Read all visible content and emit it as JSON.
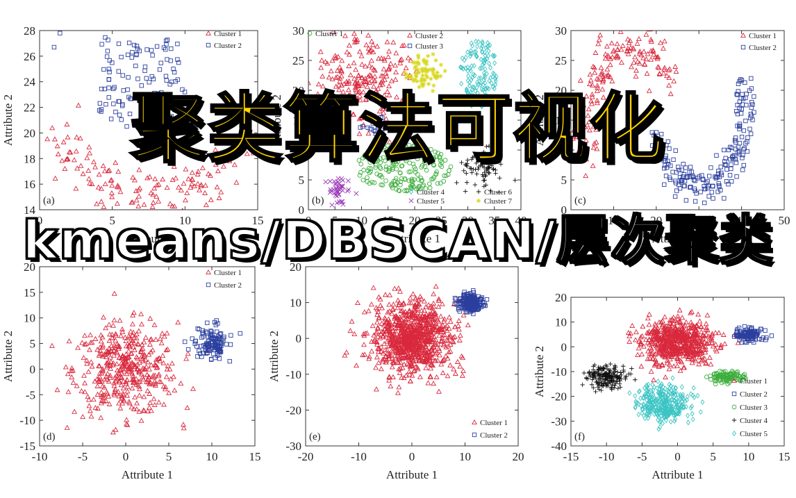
{
  "overlay": {
    "title": "聚类算法可视化",
    "subtitle": "kmeans/DBSCAN/层次聚类"
  },
  "colors": {
    "red": "#d9283c",
    "blue": "#2b3f9e",
    "green": "#3dae3d",
    "black": "#111111",
    "cyan": "#3cc4c4",
    "yellow": "#d8d820",
    "purple": "#9a39b8"
  },
  "chart_data": [
    {
      "id": "a",
      "label": "(a)",
      "type": "scatter",
      "xlim": [
        0,
        15
      ],
      "ylim": [
        14,
        28
      ],
      "xticks": [
        0,
        5,
        10,
        15
      ],
      "yticks": [
        14,
        16,
        18,
        20,
        22,
        24,
        26,
        28
      ],
      "xlabel": "Attribute 1",
      "ylabel": "Attribute 2",
      "legend": [
        {
          "name": "Cluster 1",
          "marker": "triangle",
          "color": "red"
        },
        {
          "name": "Cluster 2",
          "marker": "square",
          "color": "blue"
        }
      ],
      "series": [
        {
          "name": "Cluster 1",
          "marker": "triangle",
          "color": "red",
          "shape": "arc",
          "cx": 7.5,
          "cy": 22.5,
          "r": 6.5,
          "ry": 7.2,
          "a0": 200,
          "a1": 340,
          "width": 1.2,
          "n": 140,
          "seed": 11
        },
        {
          "name": "Cluster 2",
          "marker": "square",
          "color": "blue",
          "shape": "box",
          "x0": 4,
          "x1": 10,
          "y0": 20.5,
          "y1": 27.5,
          "n": 110,
          "seed": 12
        },
        {
          "name": "Cluster 2",
          "marker": "square",
          "color": "blue",
          "shape": "points",
          "points": [
            [
              1.4,
              27.8
            ],
            [
              1.0,
              26.7
            ]
          ]
        }
      ]
    },
    {
      "id": "b",
      "label": "(b)",
      "type": "scatter",
      "xlim": [
        0,
        40
      ],
      "ylim": [
        0,
        30
      ],
      "xticks": [
        0,
        5,
        10,
        15,
        20,
        25,
        30,
        35,
        40
      ],
      "yticks": [
        0,
        5,
        10,
        15,
        20,
        25,
        30
      ],
      "xlabel": "Attribute 1",
      "ylabel": "Attribute 2",
      "legend": [
        {
          "name": "Cluster 1",
          "marker": "circle",
          "color": "green"
        },
        {
          "name": "Cluster 2",
          "marker": "triangle",
          "color": "red"
        },
        {
          "name": "Cluster 3",
          "marker": "square",
          "color": "blue"
        },
        {
          "name": "Cluster 4",
          "marker": "diamond",
          "color": "cyan"
        },
        {
          "name": "Cluster 5",
          "marker": "x",
          "color": "purple"
        },
        {
          "name": "Cluster 6",
          "marker": "plus",
          "color": "black"
        },
        {
          "name": "Cluster 7",
          "marker": "star",
          "color": "yellow"
        }
      ],
      "series": [
        {
          "name": "Cluster 2",
          "marker": "triangle",
          "color": "red",
          "shape": "gauss",
          "cx": 10,
          "cy": 22,
          "sx": 4.5,
          "sy": 4.5,
          "n": 220,
          "seed": 21
        },
        {
          "name": "Cluster 3",
          "marker": "square",
          "color": "blue",
          "shape": "gauss",
          "cx": 13,
          "cy": 14,
          "sx": 1.2,
          "sy": 0.8,
          "n": 20,
          "seed": 22
        },
        {
          "name": "Cluster 7",
          "marker": "star",
          "color": "yellow",
          "shape": "gauss",
          "cx": 22,
          "cy": 23,
          "sx": 1.6,
          "sy": 1.5,
          "n": 70,
          "seed": 23
        },
        {
          "name": "Cluster 4",
          "marker": "diamond",
          "color": "cyan",
          "shape": "ellipse",
          "cx": 32,
          "cy": 23,
          "rx": 3.5,
          "ry": 6,
          "n": 130,
          "seed": 24
        },
        {
          "name": "Cluster 1",
          "marker": "circle",
          "color": "green",
          "shape": "ellipse",
          "cx": 18,
          "cy": 7,
          "rx": 9,
          "ry": 4,
          "n": 200,
          "seed": 25
        },
        {
          "name": "Cluster 6",
          "marker": "plus",
          "color": "black",
          "shape": "gauss",
          "cx": 33,
          "cy": 7,
          "sx": 2.2,
          "sy": 1.8,
          "n": 70,
          "seed": 26
        },
        {
          "name": "Cluster 5",
          "marker": "x",
          "color": "purple",
          "shape": "gauss",
          "cx": 6,
          "cy": 3.5,
          "sx": 1.1,
          "sy": 1.1,
          "n": 40,
          "seed": 27
        }
      ]
    },
    {
      "id": "c",
      "label": "(c)",
      "type": "scatter",
      "xlim": [
        0,
        50
      ],
      "ylim": [
        0,
        30
      ],
      "xticks": [
        0,
        10,
        20,
        30,
        40,
        50
      ],
      "yticks": [
        0,
        5,
        10,
        15,
        20,
        25,
        30
      ],
      "xlabel": "Attribute 1",
      "ylabel": "Attribute 2",
      "legend": [
        {
          "name": "Cluster 1",
          "marker": "triangle",
          "color": "red"
        },
        {
          "name": "Cluster 2",
          "marker": "square",
          "color": "blue"
        }
      ],
      "series": [
        {
          "name": "Cluster 1",
          "marker": "triangle",
          "color": "red",
          "shape": "arc",
          "cx": 14,
          "cy": 13,
          "r": 11,
          "ry": 14,
          "a0": 40,
          "a1": 200,
          "width": 2.5,
          "n": 160,
          "seed": 31
        },
        {
          "name": "Cluster 2",
          "marker": "square",
          "color": "blue",
          "shape": "arc",
          "cx": 30,
          "cy": 18,
          "r": 11,
          "ry": 14,
          "a0": 210,
          "a1": 375,
          "width": 1.8,
          "n": 200,
          "seed": 32
        }
      ]
    },
    {
      "id": "d",
      "label": "(d)",
      "type": "scatter",
      "xlim": [
        -10,
        15
      ],
      "ylim": [
        -15,
        20
      ],
      "xticks": [
        -10,
        -5,
        0,
        5,
        10,
        15
      ],
      "yticks": [
        -15,
        -10,
        -5,
        0,
        5,
        10,
        15,
        20
      ],
      "xlabel": "Attribute 1",
      "ylabel": "Attribute 2",
      "legend": [
        {
          "name": "Cluster 1",
          "marker": "triangle",
          "color": "red"
        },
        {
          "name": "Cluster 2",
          "marker": "square",
          "color": "blue"
        }
      ],
      "series": [
        {
          "name": "Cluster 1",
          "marker": "triangle",
          "color": "red",
          "shape": "gauss",
          "cx": 0,
          "cy": 0,
          "sx": 3,
          "sy": 4.5,
          "n": 420,
          "seed": 41
        },
        {
          "name": "Cluster 2",
          "marker": "square",
          "color": "blue",
          "shape": "gauss",
          "cx": 10,
          "cy": 5,
          "sx": 1.0,
          "sy": 1.6,
          "n": 120,
          "seed": 42
        }
      ]
    },
    {
      "id": "e",
      "label": "(e)",
      "type": "scatter",
      "xlim": [
        -20,
        20
      ],
      "ylim": [
        -30,
        20
      ],
      "xticks": [
        -20,
        -10,
        0,
        10,
        20
      ],
      "yticks": [
        -30,
        -20,
        -10,
        0,
        10,
        20
      ],
      "xlabel": "Attribute 1",
      "ylabel": "Attribute 2",
      "legend": [
        {
          "name": "Cluster 1",
          "marker": "triangle",
          "color": "red"
        },
        {
          "name": "Cluster 2",
          "marker": "square",
          "color": "blue"
        }
      ],
      "series": [
        {
          "name": "Cluster 1",
          "marker": "triangle",
          "color": "red",
          "shape": "gauss",
          "cx": 0,
          "cy": 0,
          "sx": 3.5,
          "sy": 5,
          "n": 900,
          "seed": 51
        },
        {
          "name": "Cluster 2",
          "marker": "square",
          "color": "blue",
          "shape": "gauss",
          "cx": 11,
          "cy": 10,
          "sx": 1.1,
          "sy": 1.2,
          "n": 220,
          "seed": 52
        }
      ]
    },
    {
      "id": "f",
      "label": "(f)",
      "type": "scatter",
      "xlim": [
        -15,
        15
      ],
      "ylim": [
        -40,
        20
      ],
      "xticks": [
        -15,
        -10,
        -5,
        0,
        5,
        10,
        15
      ],
      "yticks": [
        -40,
        -30,
        -20,
        -10,
        0,
        10,
        20
      ],
      "xlabel": "Attribute 1",
      "ylabel": "Attribute 2",
      "legend": [
        {
          "name": "Cluster 1",
          "marker": "triangle",
          "color": "red"
        },
        {
          "name": "Cluster 2",
          "marker": "square",
          "color": "blue"
        },
        {
          "name": "Cluster 3",
          "marker": "circle",
          "color": "green"
        },
        {
          "name": "Cluster 4",
          "marker": "plus",
          "color": "black"
        },
        {
          "name": "Cluster 5",
          "marker": "diamond",
          "color": "cyan"
        }
      ],
      "series": [
        {
          "name": "Cluster 1",
          "marker": "triangle",
          "color": "red",
          "shape": "gauss",
          "cx": 0,
          "cy": 2,
          "sx": 2.5,
          "sy": 4.5,
          "n": 600,
          "seed": 61
        },
        {
          "name": "Cluster 2",
          "marker": "square",
          "color": "blue",
          "shape": "gauss",
          "cx": 10,
          "cy": 5,
          "sx": 1.0,
          "sy": 1.2,
          "n": 110,
          "seed": 62
        },
        {
          "name": "Cluster 3",
          "marker": "circle",
          "color": "green",
          "shape": "gauss",
          "cx": 7,
          "cy": -12,
          "sx": 1.2,
          "sy": 1.1,
          "n": 110,
          "seed": 63
        },
        {
          "name": "Cluster 4",
          "marker": "plus",
          "color": "black",
          "shape": "gauss",
          "cx": -10,
          "cy": -12,
          "sx": 1.5,
          "sy": 2.5,
          "n": 180,
          "seed": 64
        },
        {
          "name": "Cluster 5",
          "marker": "diamond",
          "color": "cyan",
          "shape": "gauss",
          "cx": -2,
          "cy": -23,
          "sx": 1.8,
          "sy": 4,
          "n": 330,
          "seed": 65
        }
      ]
    }
  ]
}
